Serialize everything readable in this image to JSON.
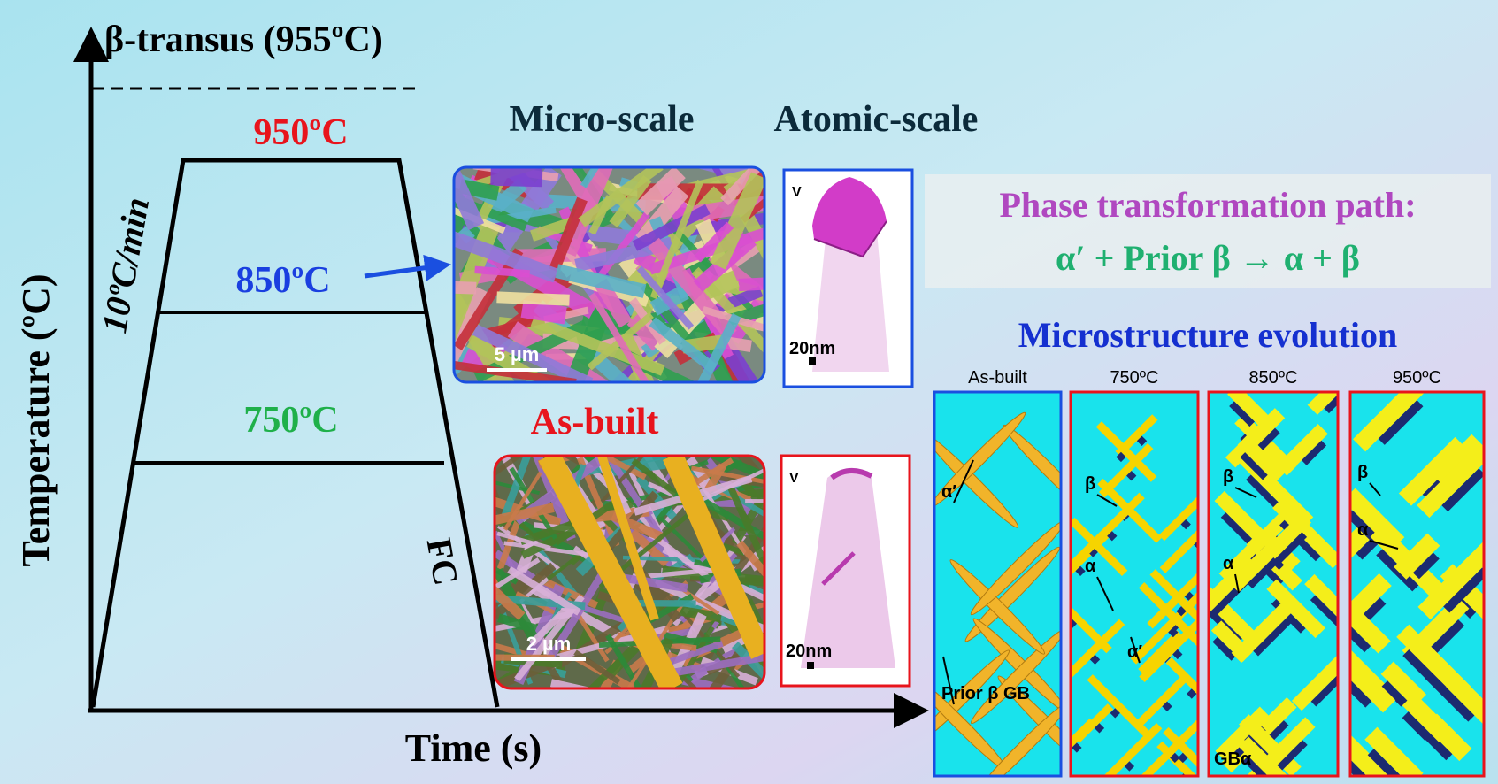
{
  "diagram": {
    "beta_transus": "β-transus (955ºC)",
    "temperatures": [
      "950ºC",
      "850ºC",
      "750ºC"
    ],
    "heating_rate": "10ºC/min",
    "cooling": "FC",
    "y_axis_label": "Temperature (ºC)",
    "x_axis_label": "Time (s)"
  },
  "headers": {
    "micro": "Micro-scale",
    "atomic": "Atomic-scale"
  },
  "images": {
    "heat_treated_scale": "5 µm",
    "apt_axis_1": "V",
    "apt_scale_1": "20nm",
    "as_built_label": "As-built",
    "as_built_scale": "2 µm",
    "apt_axis_2": "V",
    "apt_scale_2": "20nm"
  },
  "phase_path": {
    "title": "Phase transformation path:",
    "equation": "α′ + Prior β → α + β"
  },
  "evolution": {
    "title": "Microstructure evolution",
    "panels": [
      {
        "title": "As-built",
        "labels": [
          "α′",
          "Prior β GB"
        ]
      },
      {
        "title": "750ºC",
        "labels": [
          "β",
          "α",
          "α′"
        ]
      },
      {
        "title": "850ºC",
        "labels": [
          "β",
          "α",
          "GBα"
        ]
      },
      {
        "title": "950ºC",
        "labels": [
          "β",
          "α"
        ]
      }
    ]
  }
}
